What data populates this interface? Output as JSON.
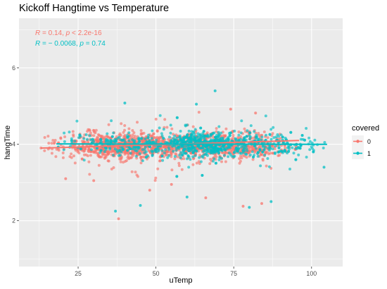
{
  "chart_data": {
    "type": "scatter",
    "title": "Kickoff Hangtime vs Temperature",
    "xlabel": "uTemp",
    "ylabel": "hangTime",
    "xlim": [
      6,
      110
    ],
    "ylim": [
      0.8,
      7.3
    ],
    "xticks": [
      25,
      50,
      75,
      100
    ],
    "yticks": [
      2,
      4,
      6
    ],
    "grid": true,
    "legend": {
      "title": "covered",
      "placement": "right",
      "entries": [
        {
          "label": "0",
          "color": "#F8766D"
        },
        {
          "label": "1",
          "color": "#00BFC4"
        }
      ]
    },
    "annotations": [
      {
        "r_label": "R",
        "stats": " = 0.14, ",
        "p_label": "p",
        "p_stats": " < 2.2e-16",
        "color": "#F8766D"
      },
      {
        "r_label": "R",
        "stats": " = − 0.0068, ",
        "p_label": "p",
        "p_stats": " = 0.74",
        "color": "#00BFC4"
      }
    ],
    "series": [
      {
        "name": "0",
        "color": "#F8766D",
        "x_range": [
          13,
          96
        ],
        "center": 3.96,
        "spread": 0.22,
        "density": [
          [
            13,
            8
          ],
          [
            18,
            20
          ],
          [
            22,
            40
          ],
          [
            28,
            110
          ],
          [
            35,
            180
          ],
          [
            42,
            200
          ],
          [
            50,
            180
          ],
          [
            57,
            120
          ],
          [
            62,
            150
          ],
          [
            68,
            140
          ],
          [
            75,
            140
          ],
          [
            82,
            100
          ],
          [
            88,
            50
          ],
          [
            93,
            15
          ],
          [
            96,
            4
          ]
        ],
        "fit": {
          "x": [
            13,
            96
          ],
          "y": [
            3.9,
            4.1
          ]
        },
        "outliers": [
          {
            "x": 38,
            "y": 2.05
          },
          {
            "x": 21,
            "y": 3.1
          },
          {
            "x": 66,
            "y": 2.6
          },
          {
            "x": 78,
            "y": 2.38
          },
          {
            "x": 84,
            "y": 2.45
          },
          {
            "x": 74,
            "y": 4.92
          },
          {
            "x": 82,
            "y": 4.82
          },
          {
            "x": 30,
            "y": 3.05
          },
          {
            "x": 55,
            "y": 2.95
          },
          {
            "x": 48,
            "y": 2.8
          }
        ]
      },
      {
        "name": "1",
        "color": "#00BFC4",
        "x_range": [
          18,
          105
        ],
        "center": 4.0,
        "spread": 0.22,
        "density": [
          [
            18,
            4
          ],
          [
            25,
            15
          ],
          [
            30,
            30
          ],
          [
            40,
            55
          ],
          [
            50,
            50
          ],
          [
            55,
            40
          ],
          [
            60,
            120
          ],
          [
            64,
            180
          ],
          [
            68,
            150
          ],
          [
            75,
            80
          ],
          [
            82,
            60
          ],
          [
            90,
            45
          ],
          [
            97,
            25
          ],
          [
            103,
            12
          ],
          [
            105,
            4
          ]
        ],
        "fit": {
          "x": [
            18,
            105
          ],
          "y": [
            4.01,
            4.0
          ]
        },
        "outliers": [
          {
            "x": 37,
            "y": 2.25
          },
          {
            "x": 45,
            "y": 2.4
          },
          {
            "x": 69,
            "y": 5.4
          },
          {
            "x": 40,
            "y": 5.08
          },
          {
            "x": 80,
            "y": 2.35
          },
          {
            "x": 104,
            "y": 3.4
          },
          {
            "x": 63,
            "y": 5.05
          },
          {
            "x": 60,
            "y": 2.62
          },
          {
            "x": 87,
            "y": 2.5
          }
        ]
      }
    ]
  }
}
